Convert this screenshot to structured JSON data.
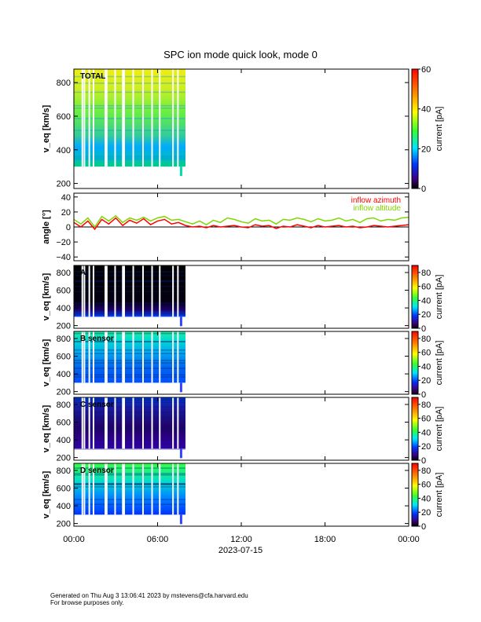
{
  "page": {
    "title": "SPC ion mode quick look, mode 0",
    "xaxis_date": "2023-07-15",
    "footer_line1": "Generated on Thu Aug  3 13:06:41 2023 by mstevens@cfa.harvard.edu",
    "footer_line2": "For browse purposes only."
  },
  "chart_data": [
    {
      "type": "heatmap",
      "panel": "total",
      "label": "TOTAL",
      "ylabel": "v_eq [km/s]",
      "ylim": [
        170,
        880
      ],
      "yticks": [
        "200",
        "400",
        "600",
        "800"
      ],
      "ytick_values": [
        200,
        400,
        600,
        800
      ],
      "xlim_hours": [
        0,
        24
      ],
      "data_coverage_hours": [
        0.0,
        8.0
      ],
      "colorbar": {
        "label": "current [pA]",
        "range": [
          0,
          60
        ],
        "ticks": [
          "0",
          "20",
          "40",
          "60"
        ],
        "tick_values": [
          0,
          20,
          40,
          60
        ]
      },
      "colormap": "rainbow"
    },
    {
      "type": "line",
      "panel": "angle",
      "ylabel": "angle [°]",
      "ylim": [
        -45,
        45
      ],
      "yticks": [
        "−40",
        "−20",
        "0",
        "20",
        "40"
      ],
      "ytick_values": [
        -40,
        -20,
        0,
        20,
        40
      ],
      "xlim_hours": [
        0,
        24
      ],
      "zero_line": true,
      "series": [
        {
          "name": "inflow azimuth",
          "color": "#ff0000",
          "x": [
            0.0,
            0.5,
            1.0,
            1.5,
            2.0,
            2.5,
            3.0,
            3.5,
            4.0,
            4.5,
            5.0,
            5.5,
            6.0,
            6.5,
            7.0,
            7.5,
            8.0,
            8.5,
            9.0,
            9.5,
            10.0,
            10.5,
            11.0,
            11.5,
            12.0,
            12.5,
            13.0,
            13.5,
            14.0,
            14.5,
            15.0,
            15.5,
            16.0,
            16.5,
            17.0,
            17.5,
            18.0,
            18.5,
            19.0,
            19.5,
            20.0,
            20.5,
            21.0,
            21.5,
            22.0,
            22.5,
            23.0,
            23.5,
            24.0
          ],
          "y": [
            6,
            0,
            8,
            -3,
            10,
            4,
            12,
            2,
            9,
            5,
            11,
            3,
            8,
            10,
            4,
            6,
            2,
            0,
            1,
            -1,
            2,
            0,
            1,
            2,
            0,
            -1,
            3,
            1,
            2,
            -2,
            1,
            0,
            3,
            1,
            -1,
            2,
            0,
            1,
            2,
            0,
            1,
            -1,
            0,
            2,
            1,
            0,
            1,
            2,
            3
          ]
        },
        {
          "name": "inflow altitude",
          "color": "#7fd600",
          "x": [
            0.0,
            0.5,
            1.0,
            1.5,
            2.0,
            2.5,
            3.0,
            3.5,
            4.0,
            4.5,
            5.0,
            5.5,
            6.0,
            6.5,
            7.0,
            7.5,
            8.0,
            8.5,
            9.0,
            9.5,
            10.0,
            10.5,
            11.0,
            11.5,
            12.0,
            12.5,
            13.0,
            13.5,
            14.0,
            14.5,
            15.0,
            15.5,
            16.0,
            16.5,
            17.0,
            17.5,
            18.0,
            18.5,
            19.0,
            19.5,
            20.0,
            20.5,
            21.0,
            21.5,
            22.0,
            22.5,
            23.0,
            23.5,
            24.0
          ],
          "y": [
            10,
            4,
            12,
            0,
            14,
            8,
            15,
            6,
            12,
            9,
            13,
            8,
            12,
            14,
            9,
            10,
            7,
            4,
            8,
            3,
            9,
            6,
            12,
            10,
            7,
            5,
            11,
            8,
            9,
            4,
            10,
            9,
            12,
            10,
            7,
            11,
            8,
            9,
            12,
            8,
            10,
            6,
            11,
            12,
            8,
            10,
            9,
            12,
            13
          ]
        }
      ]
    },
    {
      "type": "heatmap",
      "panel": "sensor-a",
      "label": "A",
      "ylabel": "v_eq [km/s]",
      "ylim": [
        170,
        880
      ],
      "yticks": [
        "200",
        "400",
        "600",
        "800"
      ],
      "ytick_values": [
        200,
        400,
        600,
        800
      ],
      "xlim_hours": [
        0,
        24
      ],
      "data_coverage_hours": [
        0.0,
        8.0
      ],
      "colorbar": {
        "label": "current [pA]",
        "range": [
          0,
          90
        ],
        "ticks": [
          "0",
          "20",
          "40",
          "60",
          "80"
        ],
        "tick_values": [
          0,
          20,
          40,
          60,
          80
        ]
      },
      "colormap": "rainbow"
    },
    {
      "type": "heatmap",
      "panel": "sensor-b",
      "label": "B sensor",
      "ylabel": "v_eq [km/s]",
      "ylim": [
        170,
        880
      ],
      "yticks": [
        "200",
        "400",
        "600",
        "800"
      ],
      "ytick_values": [
        200,
        400,
        600,
        800
      ],
      "xlim_hours": [
        0,
        24
      ],
      "data_coverage_hours": [
        0.0,
        8.0
      ],
      "colorbar": {
        "label": "current [pA]",
        "range": [
          0,
          90
        ],
        "ticks": [
          "0",
          "20",
          "40",
          "60",
          "80"
        ],
        "tick_values": [
          0,
          20,
          40,
          60,
          80
        ]
      },
      "colormap": "rainbow"
    },
    {
      "type": "heatmap",
      "panel": "sensor-c",
      "label": "C sensor",
      "ylabel": "v_eq [km/s]",
      "ylim": [
        170,
        880
      ],
      "yticks": [
        "200",
        "400",
        "600",
        "800"
      ],
      "ytick_values": [
        200,
        400,
        600,
        800
      ],
      "xlim_hours": [
        0,
        24
      ],
      "data_coverage_hours": [
        0.0,
        8.0
      ],
      "colorbar": {
        "label": "current [pA]",
        "range": [
          0,
          90
        ],
        "ticks": [
          "0",
          "20",
          "40",
          "60",
          "80"
        ],
        "tick_values": [
          0,
          20,
          40,
          60,
          80
        ]
      },
      "colormap": "rainbow"
    },
    {
      "type": "heatmap",
      "panel": "sensor-d",
      "label": "D sensor",
      "ylabel": "v_eq [km/s]",
      "ylim": [
        170,
        880
      ],
      "yticks": [
        "200",
        "400",
        "600",
        "800"
      ],
      "ytick_values": [
        200,
        400,
        600,
        800
      ],
      "xlim_hours": [
        0,
        24
      ],
      "data_coverage_hours": [
        0.0,
        8.0
      ],
      "colorbar": {
        "label": "current [pA]",
        "range": [
          0,
          90
        ],
        "ticks": [
          "0",
          "20",
          "40",
          "60",
          "80"
        ],
        "tick_values": [
          0,
          20,
          40,
          60,
          80
        ]
      },
      "colormap": "rainbow"
    }
  ],
  "xaxis": {
    "ticks": [
      "00:00",
      "06:00",
      "12:00",
      "18:00",
      "00:00"
    ],
    "tick_values_hours": [
      0,
      6,
      12,
      18,
      24
    ]
  }
}
